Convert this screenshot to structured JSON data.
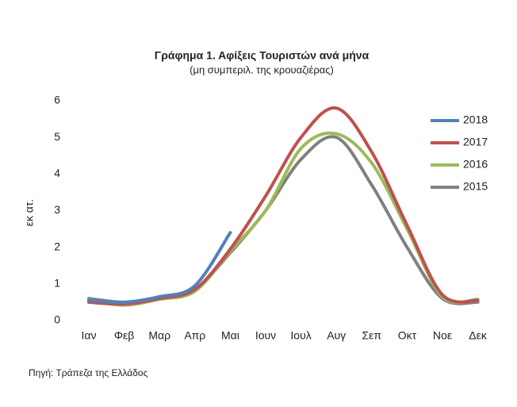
{
  "chart_data": {
    "type": "line",
    "title": "Γράφημα 1. Αφίξεις Τουριστών ανά μήνα",
    "subtitle": "(μη συμπεριλ. της κρουαζιέρας)",
    "y_label": "εκ ατ.",
    "source": "Πηγή: Τράπεζα της Ελλάδος",
    "categories": [
      "Ιαν",
      "Φεβ",
      "Μαρ",
      "Απρ",
      "Μαι",
      "Ιουν",
      "Ιουλ",
      "Αυγ",
      "Σεπ",
      "Οκτ",
      "Νοε",
      "Δεκ"
    ],
    "series": [
      {
        "name": "2018",
        "color": "#4f81bd",
        "values": [
          0.55,
          0.5,
          0.65,
          0.95,
          2.4,
          null,
          null,
          null,
          null,
          null,
          null,
          null
        ]
      },
      {
        "name": "2017",
        "color": "#c0504d",
        "values": [
          0.5,
          0.45,
          0.6,
          0.85,
          1.95,
          3.4,
          5.0,
          5.8,
          4.6,
          2.6,
          0.7,
          0.55
        ]
      },
      {
        "name": "2016",
        "color": "#9bbb59",
        "values": [
          0.55,
          0.42,
          0.58,
          0.8,
          1.9,
          3.0,
          4.7,
          5.1,
          4.3,
          2.5,
          0.65,
          0.58
        ]
      },
      {
        "name": "2015",
        "color": "#808080",
        "values": [
          0.6,
          0.5,
          0.6,
          0.85,
          1.85,
          3.0,
          4.4,
          5.0,
          3.7,
          2.0,
          0.6,
          0.5
        ]
      }
    ],
    "ylim": [
      0,
      6
    ],
    "yticks": [
      0,
      1,
      2,
      3,
      4,
      5,
      6
    ],
    "grid": false,
    "legend": "upper right"
  }
}
